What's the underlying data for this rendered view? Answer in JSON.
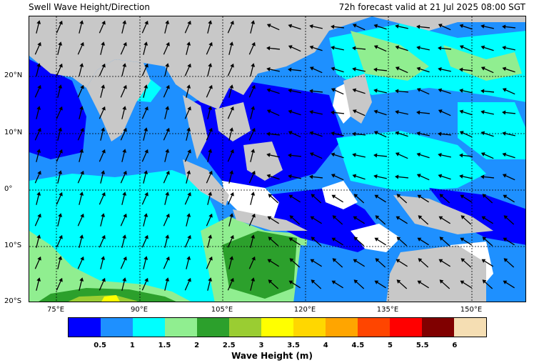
{
  "title_left": "Swell Wave Height/Direction",
  "title_right": "72h forecast valid at 21 Jul 2025 08:00 SGT",
  "lat_labels": [
    "20°N",
    "10°N",
    "0°",
    "10°S",
    "20°S"
  ],
  "lon_labels": [
    "75°E",
    "90°E",
    "105°E",
    "120°E",
    "135°E",
    "150°E"
  ],
  "colorbar": {
    "label": "Wave Height (m)",
    "ticks": [
      "0.5",
      "1",
      "1.5",
      "2",
      "2.5",
      "3",
      "3.5",
      "4",
      "4.5",
      "5",
      "5.5",
      "6"
    ],
    "colors": [
      "#0000ff",
      "#1e90ff",
      "#00ffff",
      "#90ee90",
      "#2ca02c",
      "#9acd32",
      "#ffff00",
      "#ffd700",
      "#ffa500",
      "#ff4500",
      "#ff0000",
      "#800000",
      "#f5deb3"
    ]
  },
  "colors": {
    "land": "#c8c8c8",
    "calm": "#ffffff"
  }
}
